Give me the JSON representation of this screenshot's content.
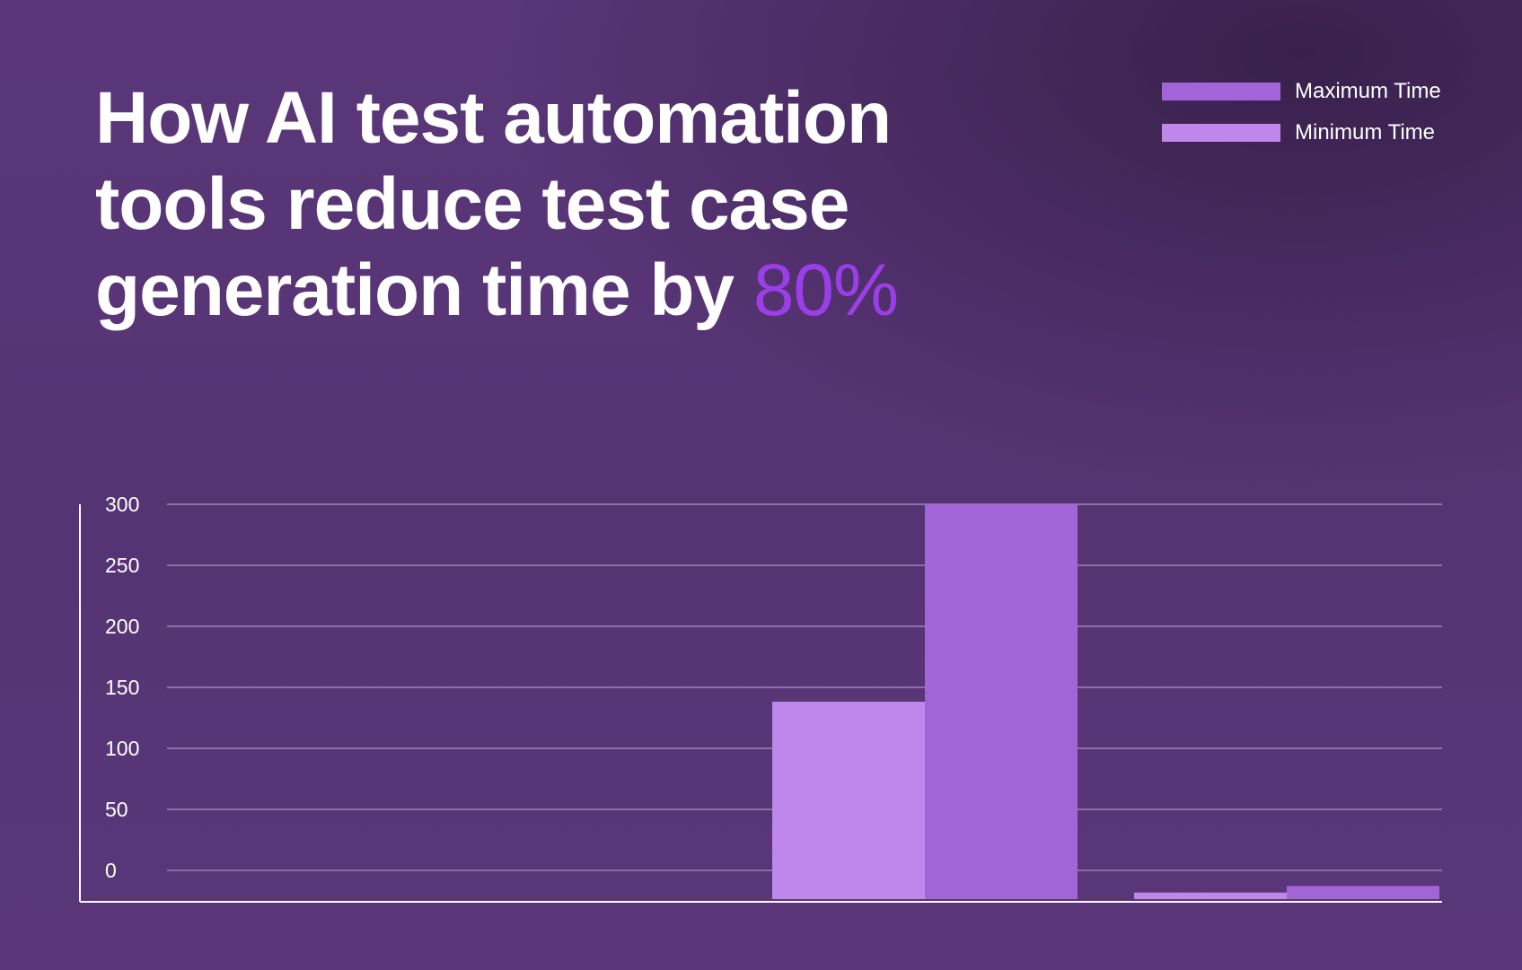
{
  "title": {
    "text": "How AI test automation tools reduce test case generation time by",
    "highlight": "80%"
  },
  "colors": {
    "background": "#583577",
    "max_series": "#a265d8",
    "min_series": "#bf87ec",
    "highlight": "#9b3ee8",
    "gridline": "#9a84b7",
    "axis": "#ffffff",
    "text": "#ffffff"
  },
  "chart_data": {
    "type": "bar",
    "title": "How AI test automation tools reduce test case generation time by 80%",
    "xlabel": "",
    "ylabel": "",
    "ylim": [
      0,
      300
    ],
    "yticks": [
      300,
      250,
      200,
      150,
      100,
      50,
      0
    ],
    "grid": true,
    "legend_position": "top-right",
    "categories": [
      "",
      "",
      "",
      ""
    ],
    "series": [
      {
        "name": "Minimum Time",
        "color": "#bf87ec",
        "values": [
          0,
          0,
          150,
          5
        ]
      },
      {
        "name": "Maximum Time",
        "color": "#a265d8",
        "values": [
          0,
          0,
          300,
          10
        ]
      }
    ]
  }
}
